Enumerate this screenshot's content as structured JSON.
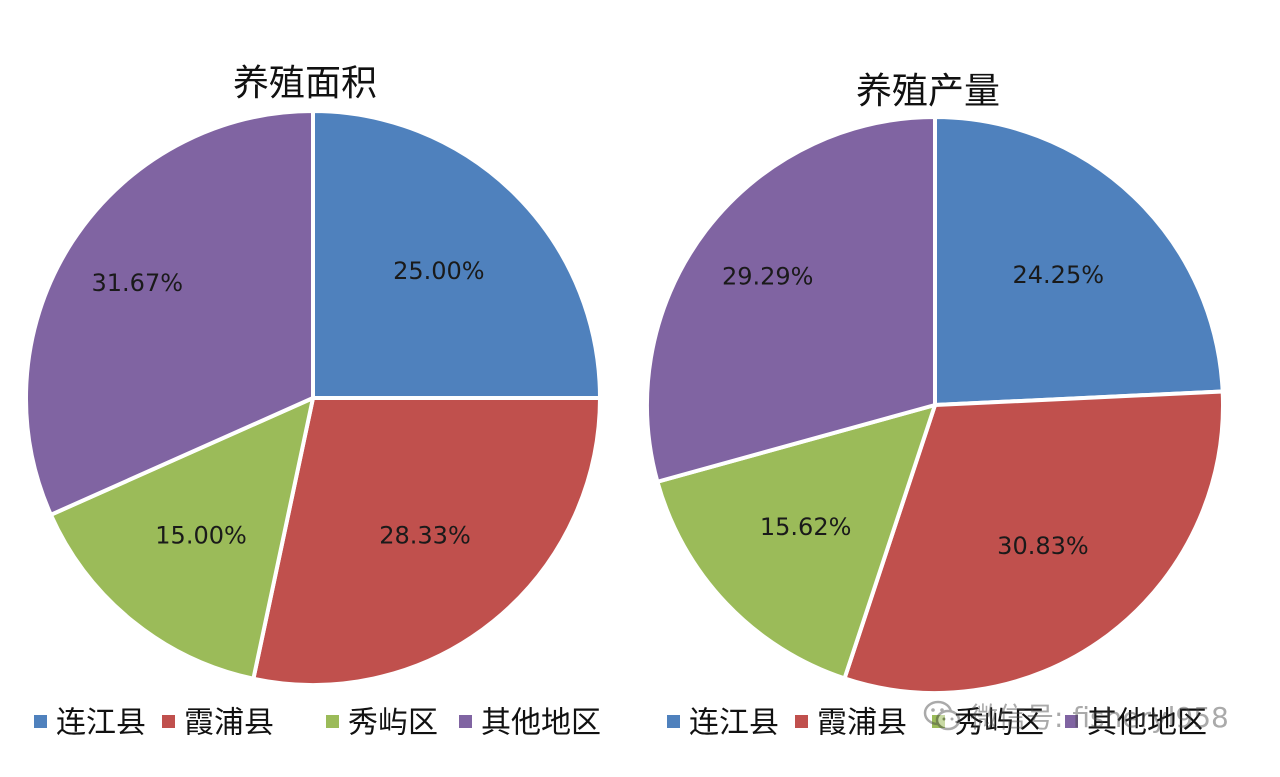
{
  "colors": {
    "连江县": "#4f81bd",
    "霞浦县": "#c0504d",
    "秀屿区": "#9bbb59",
    "其他地区": "#8064a2"
  },
  "watermark": {
    "text": "微信号: fisheryl958",
    "icon": "wechat-icon"
  },
  "chart_data": [
    {
      "type": "pie",
      "title": "养殖面积",
      "categories": [
        "连江县",
        "霞浦县",
        "秀屿区",
        "其他地区"
      ],
      "values": [
        25.0,
        28.33,
        15.0,
        31.67
      ],
      "labels": [
        "25.00%",
        "28.33%",
        "15.00%",
        "31.67%"
      ],
      "legend": "bottom"
    },
    {
      "type": "pie",
      "title": "养殖产量",
      "categories": [
        "连江县",
        "霞浦县",
        "秀屿区",
        "其他地区"
      ],
      "values": [
        24.25,
        30.83,
        15.62,
        29.29
      ],
      "labels": [
        "24.25%",
        "30.83%",
        "15.62%",
        "29.29%"
      ],
      "legend": "bottom"
    }
  ]
}
